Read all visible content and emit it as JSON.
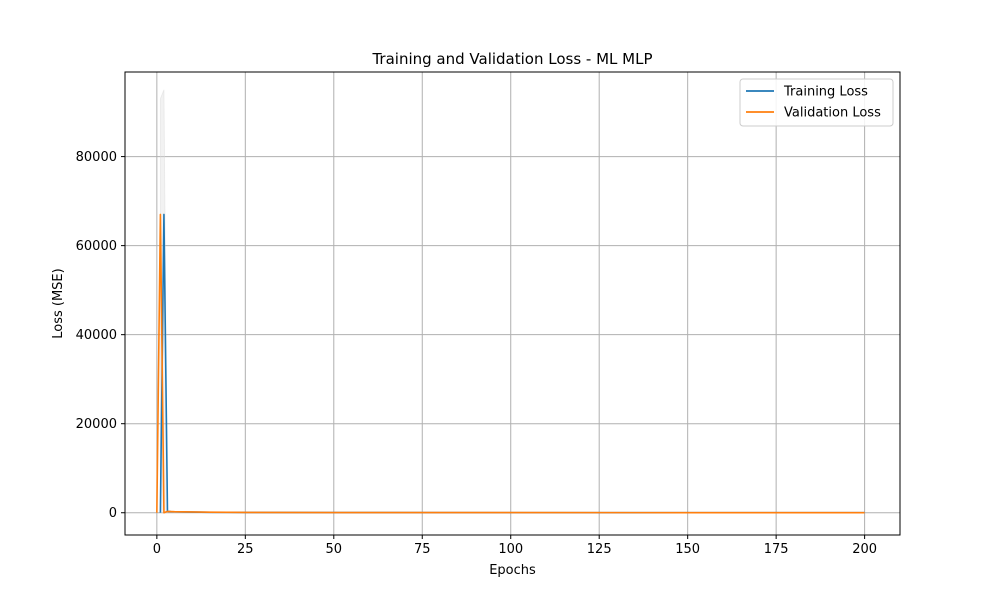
{
  "chart_data": {
    "type": "line",
    "title": "Training and Validation Loss - ML MLP",
    "xlabel": "Epochs",
    "ylabel": "Loss (MSE)",
    "xlim": [
      -9,
      210
    ],
    "ylim": [
      -5000,
      99000
    ],
    "xticks": [
      0,
      25,
      50,
      75,
      100,
      125,
      150,
      175,
      200
    ],
    "yticks": [
      0,
      20000,
      40000,
      60000,
      80000
    ],
    "grid": true,
    "legend_position": "top-right",
    "series": [
      {
        "name": "Training Loss",
        "color": "#1f77b4",
        "x": [
          1,
          2,
          3,
          4,
          5,
          10,
          15,
          20,
          25,
          50,
          100,
          150,
          200
        ],
        "y": [
          0,
          67000,
          300,
          250,
          220,
          150,
          100,
          80,
          60,
          40,
          25,
          20,
          15
        ]
      },
      {
        "name": "Validation Loss",
        "color": "#ff7f0e",
        "x": [
          0,
          1,
          2,
          3,
          4,
          5,
          10,
          15,
          20,
          25,
          50,
          100,
          150,
          200
        ],
        "y": [
          0,
          67000,
          0,
          300,
          260,
          230,
          170,
          120,
          90,
          70,
          45,
          30,
          22,
          18
        ]
      }
    ],
    "band": {
      "color": "#d9d9d9",
      "x": [
        1,
        2,
        3
      ],
      "upper": [
        93000,
        95000,
        300
      ]
    }
  }
}
